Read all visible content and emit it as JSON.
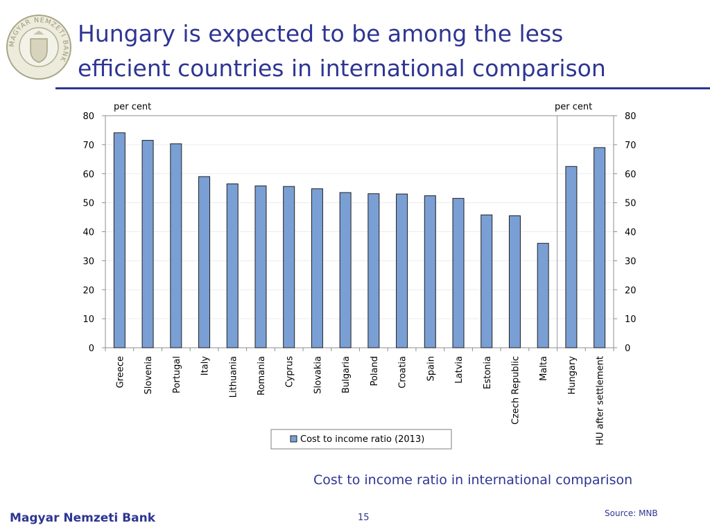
{
  "slide": {
    "title_line1": "Hungary is expected to be among the less",
    "title_line2": "efficient countries in international comparison",
    "caption": "Cost to income ratio in international comparison",
    "footer_name": "Magyar Nemzeti Bank",
    "page_number": "15",
    "source": "Source: MNB",
    "logo_text": "MAGYAR NEMZETI BANK"
  },
  "colors": {
    "accent": "#2e3592",
    "bar_fill": "#7a9fd4",
    "bar_stroke": "#1f1f1f"
  },
  "chart_data": {
    "type": "bar",
    "categories": [
      "Greece",
      "Slovenia",
      "Portugal",
      "Italy",
      "Lithuania",
      "Romania",
      "Cyprus",
      "Slovakia",
      "Bulgaria",
      "Poland",
      "Croatia",
      "Spain",
      "Latvia",
      "Estonia",
      "Czech Republic",
      "Malta",
      "Hungary",
      "HU after settlement"
    ],
    "series": [
      {
        "name": "Cost to income ratio (2013)",
        "values": [
          74.1,
          71.5,
          70.3,
          59.0,
          56.5,
          55.8,
          55.6,
          54.8,
          53.5,
          53.1,
          53.0,
          52.4,
          51.5,
          45.8,
          45.5,
          36.0,
          62.5,
          69.0
        ]
      }
    ],
    "ylabel_left": "per cent",
    "ylabel_right": "per cent",
    "ylim": [
      0,
      80
    ],
    "yticks": [
      0,
      10,
      20,
      30,
      40,
      50,
      60,
      70,
      80
    ],
    "grid": true,
    "legend": "bottom-center",
    "separator_after_category": "Malta"
  }
}
